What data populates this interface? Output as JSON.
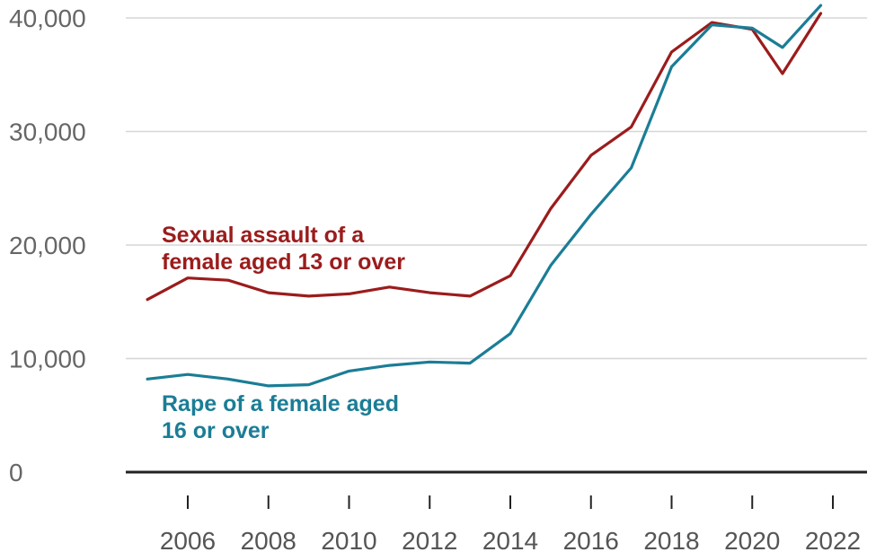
{
  "chart_data": {
    "type": "line",
    "x": [
      2005,
      2006,
      2007,
      2008,
      2009,
      2010,
      2011,
      2012,
      2013,
      2014,
      2015,
      2016,
      2017,
      2018,
      2019,
      2020,
      2020.75,
      2021.7
    ],
    "x_tick_labels": [
      "2006",
      "2008",
      "2010",
      "2012",
      "2014",
      "2016",
      "2018",
      "2020",
      "2022"
    ],
    "xlim": [
      2004.5,
      2022.5
    ],
    "ylim": [
      0,
      40000
    ],
    "y_ticks": [
      0,
      10000,
      20000,
      30000,
      40000
    ],
    "y_tick_labels": [
      "0",
      "10,000",
      "20,000",
      "30,000",
      "40,000"
    ],
    "grid": true,
    "series": [
      {
        "name": "Sexual assault of a female aged 13 or over",
        "label_lines": [
          "Sexual assault of a",
          "female aged 13 or over"
        ],
        "color": "#9b1c1c",
        "values": [
          15200,
          17100,
          16900,
          15800,
          15500,
          15700,
          16300,
          15800,
          15500,
          17300,
          23200,
          27900,
          30400,
          37000,
          39600,
          39000,
          35100,
          40400
        ]
      },
      {
        "name": "Rape of a female aged 16 or over",
        "label_lines": [
          "Rape of a female aged",
          "16 or over"
        ],
        "color": "#1b7d96",
        "values": [
          8200,
          8600,
          8200,
          7600,
          7700,
          8900,
          9400,
          9700,
          9600,
          12200,
          18200,
          22700,
          26800,
          35700,
          39400,
          39100,
          37400,
          41100
        ]
      }
    ]
  }
}
